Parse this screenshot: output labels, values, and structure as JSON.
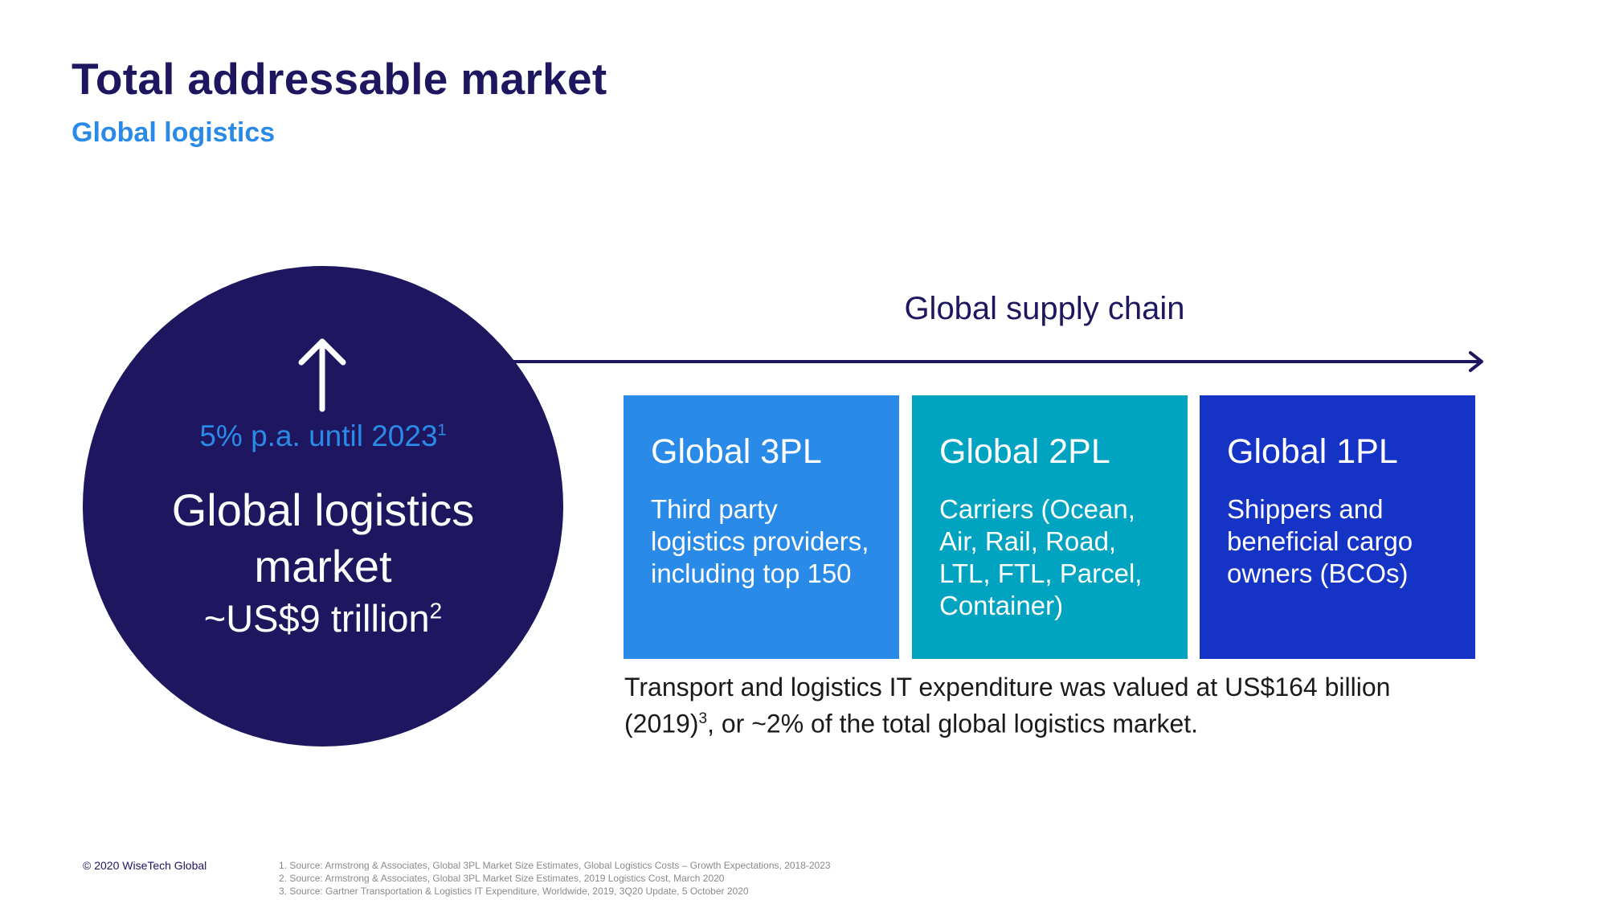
{
  "header": {
    "title": "Total addressable market",
    "subtitle": "Global logistics"
  },
  "market": {
    "growth_text": "5% p.a. until 2023",
    "growth_ref": "1",
    "title": "Global logistics market",
    "value_text": "~US$9 trillion",
    "value_ref": "2"
  },
  "supply_chain": {
    "label": "Global supply chain",
    "boxes": [
      {
        "title": "Global 3PL",
        "desc": "Third party logistics providers, including top 150",
        "color": "#2a8ae8"
      },
      {
        "title": "Global 2PL",
        "desc": "Carriers (Ocean, Air, Rail, Road, LTL, FTL, Parcel, Container)",
        "color": "#00a3c0"
      },
      {
        "title": "Global 1PL",
        "desc": "Shippers and beneficial cargo owners (BCOs)",
        "color": "#1533c4"
      }
    ]
  },
  "it_note": {
    "part1": "Transport and logistics IT expenditure was valued at US$164 billion (2019)",
    "ref": "3",
    "part2": ", or ~2% of the total global logistics market",
    "end": "."
  },
  "footer": {
    "copyright": "© 2020 WiseTech Global",
    "footnotes": [
      "1.  Source: Armstrong & Associates, Global 3PL Market Size Estimates, Global Logistics Costs – Growth Expectations, 2018-2023",
      "2. Source: Armstrong & Associates, Global 3PL Market Size Estimates, 2019 Logistics Cost, March 2020",
      "3. Source: Gartner Transportation & Logistics IT Expenditure, Worldwide, 2019, 3Q20 Update, 5 October 2020"
    ]
  },
  "colors": {
    "navy": "#1e1760",
    "accent_blue": "#2a8ae8",
    "teal": "#00a3c0",
    "royal_blue": "#1533c4"
  }
}
